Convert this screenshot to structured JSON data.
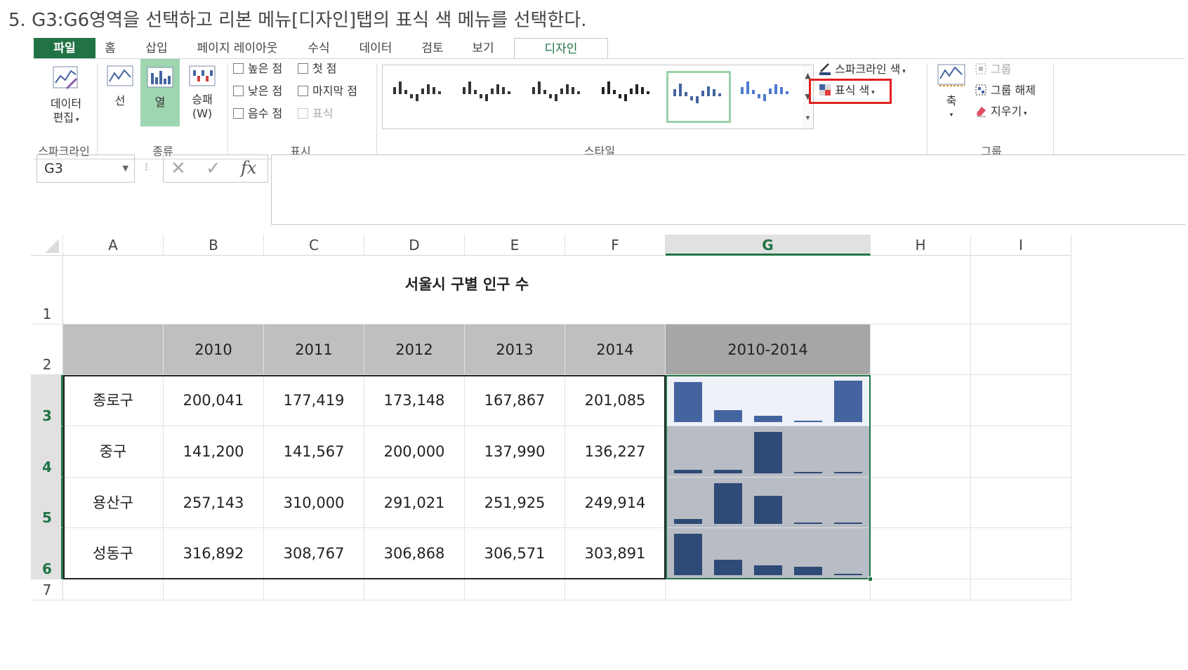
{
  "caption": "5. G3:G6영역을 선택하고 리본 메뉴[디자인]탭의 표식 색 메뉴를 선택한다.",
  "tabs": [
    "파일",
    "홈",
    "삽입",
    "페이지 레이아웃",
    "수식",
    "데이터",
    "검토",
    "보기",
    "디자인"
  ],
  "active_tab": "디자인",
  "ribbon": {
    "sparkline_group": {
      "edit_label_1": "데이터",
      "edit_label_2": "편집",
      "group_label": "스파크라인"
    },
    "type_group": {
      "line": "선",
      "column": "열",
      "winloss_1": "승패",
      "winloss_2": "(W)",
      "group_label": "종류"
    },
    "show_group": {
      "high_point": "높은 점",
      "first_point": "첫 점",
      "low_point": "낮은 점",
      "last_point": "마지막 점",
      "negative_point": "음수 점",
      "markers": "표식",
      "group_label": "표시"
    },
    "style_group": {
      "group_label": "스타일"
    },
    "color_cmds": {
      "sparkline_color": "스파크라인 색",
      "marker_color": "표식 색"
    },
    "grouping": {
      "axis": "축",
      "group": "그룹",
      "ungroup": "그룹 해제",
      "clear": "지우기",
      "group_label": "그룹"
    }
  },
  "formula_bar": {
    "name_box": "G3",
    "fx": "fx",
    "formula": ""
  },
  "columns": [
    "A",
    "B",
    "C",
    "D",
    "E",
    "F",
    "G",
    "H",
    "I"
  ],
  "selected_column": "G",
  "rows": [
    "1",
    "2",
    "3",
    "4",
    "5",
    "6",
    "7"
  ],
  "selected_rows": [
    "3",
    "4",
    "5",
    "6"
  ],
  "sheet": {
    "title": "서울시 구별 인구 수",
    "years": [
      "2010",
      "2011",
      "2012",
      "2013",
      "2014"
    ],
    "range_header": "2010-2014",
    "districts": [
      {
        "name": "종로구",
        "values": [
          "200,041",
          "177,419",
          "173,148",
          "167,867",
          "201,085"
        ]
      },
      {
        "name": "중구",
        "values": [
          "141,200",
          "141,567",
          "200,000",
          "137,990",
          "136,227"
        ]
      },
      {
        "name": "용산구",
        "values": [
          "257,143",
          "310,000",
          "291,021",
          "251,925",
          "249,914"
        ]
      },
      {
        "name": "성동구",
        "values": [
          "316,892",
          "308,767",
          "306,868",
          "306,571",
          "303,891"
        ]
      }
    ]
  },
  "colors": {
    "excel_green": "#217346",
    "sparkline_active": "#4464a0",
    "sparkline_other": "#2e4a76",
    "header_fill": "#bfbfbf",
    "highlight_red": "#e02020"
  }
}
